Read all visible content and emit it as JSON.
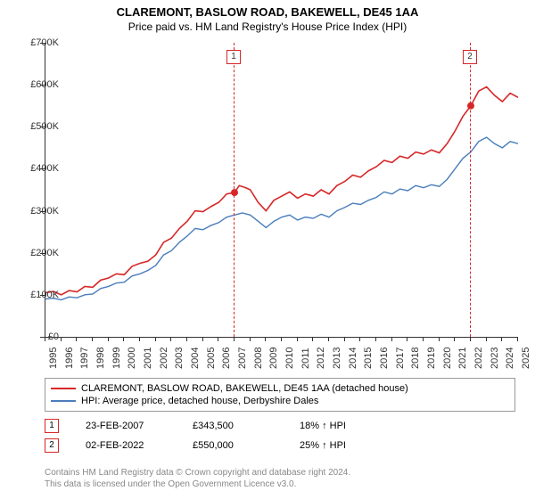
{
  "title": "CLAREMONT, BASLOW ROAD, BAKEWELL, DE45 1AA",
  "subtitle": "Price paid vs. HM Land Registry's House Price Index (HPI)",
  "chart": {
    "type": "line",
    "xlim": [
      1995,
      2025
    ],
    "ylim": [
      0,
      700000
    ],
    "ytick_step": 100000,
    "y_prefix": "£",
    "y_suffix": "K",
    "xticks": [
      1995,
      1996,
      1997,
      1998,
      1999,
      2000,
      2001,
      2002,
      2003,
      2004,
      2005,
      2006,
      2007,
      2008,
      2009,
      2010,
      2011,
      2012,
      2013,
      2014,
      2015,
      2016,
      2017,
      2018,
      2019,
      2020,
      2021,
      2022,
      2023,
      2024,
      2025
    ],
    "background_color": "#ffffff",
    "axis_color": "#333333",
    "series": [
      {
        "name": "CLAREMONT, BASLOW ROAD, BAKEWELL, DE45 1AA (detached house)",
        "color": "#d62728",
        "width": 1.6,
        "data": [
          [
            1995,
            105000
          ],
          [
            1995.5,
            108000
          ],
          [
            1996,
            100000
          ],
          [
            1996.5,
            110000
          ],
          [
            1997,
            107000
          ],
          [
            1997.5,
            120000
          ],
          [
            1998,
            118000
          ],
          [
            1998.5,
            135000
          ],
          [
            1999,
            140000
          ],
          [
            1999.5,
            150000
          ],
          [
            2000,
            148000
          ],
          [
            2000.5,
            168000
          ],
          [
            2001,
            175000
          ],
          [
            2001.5,
            180000
          ],
          [
            2002,
            195000
          ],
          [
            2002.5,
            225000
          ],
          [
            2003,
            235000
          ],
          [
            2003.5,
            258000
          ],
          [
            2004,
            275000
          ],
          [
            2004.5,
            300000
          ],
          [
            2005,
            298000
          ],
          [
            2005.5,
            310000
          ],
          [
            2006,
            320000
          ],
          [
            2006.5,
            340000
          ],
          [
            2007,
            343500
          ],
          [
            2007.3,
            360000
          ],
          [
            2007.7,
            355000
          ],
          [
            2008,
            350000
          ],
          [
            2008.5,
            320000
          ],
          [
            2009,
            300000
          ],
          [
            2009.5,
            325000
          ],
          [
            2010,
            335000
          ],
          [
            2010.5,
            345000
          ],
          [
            2011,
            330000
          ],
          [
            2011.5,
            340000
          ],
          [
            2012,
            335000
          ],
          [
            2012.5,
            350000
          ],
          [
            2013,
            340000
          ],
          [
            2013.5,
            360000
          ],
          [
            2014,
            370000
          ],
          [
            2014.5,
            385000
          ],
          [
            2015,
            380000
          ],
          [
            2015.5,
            395000
          ],
          [
            2016,
            405000
          ],
          [
            2016.5,
            420000
          ],
          [
            2017,
            415000
          ],
          [
            2017.5,
            430000
          ],
          [
            2018,
            425000
          ],
          [
            2018.5,
            440000
          ],
          [
            2019,
            435000
          ],
          [
            2019.5,
            445000
          ],
          [
            2020,
            438000
          ],
          [
            2020.5,
            460000
          ],
          [
            2021,
            490000
          ],
          [
            2021.5,
            525000
          ],
          [
            2022,
            550000
          ],
          [
            2022.5,
            585000
          ],
          [
            2023,
            595000
          ],
          [
            2023.5,
            575000
          ],
          [
            2024,
            560000
          ],
          [
            2024.5,
            580000
          ],
          [
            2025,
            570000
          ]
        ]
      },
      {
        "name": "HPI: Average price, detached house, Derbyshire Dales",
        "color": "#4a7ebb",
        "width": 1.4,
        "data": [
          [
            1995,
            90000
          ],
          [
            1995.5,
            92000
          ],
          [
            1996,
            88000
          ],
          [
            1996.5,
            95000
          ],
          [
            1997,
            93000
          ],
          [
            1997.5,
            100000
          ],
          [
            1998,
            102000
          ],
          [
            1998.5,
            115000
          ],
          [
            1999,
            120000
          ],
          [
            1999.5,
            128000
          ],
          [
            2000,
            130000
          ],
          [
            2000.5,
            145000
          ],
          [
            2001,
            150000
          ],
          [
            2001.5,
            158000
          ],
          [
            2002,
            170000
          ],
          [
            2002.5,
            195000
          ],
          [
            2003,
            205000
          ],
          [
            2003.5,
            225000
          ],
          [
            2004,
            240000
          ],
          [
            2004.5,
            258000
          ],
          [
            2005,
            255000
          ],
          [
            2005.5,
            265000
          ],
          [
            2006,
            272000
          ],
          [
            2006.5,
            285000
          ],
          [
            2007,
            290000
          ],
          [
            2007.5,
            295000
          ],
          [
            2008,
            290000
          ],
          [
            2008.5,
            275000
          ],
          [
            2009,
            260000
          ],
          [
            2009.5,
            275000
          ],
          [
            2010,
            285000
          ],
          [
            2010.5,
            290000
          ],
          [
            2011,
            278000
          ],
          [
            2011.5,
            285000
          ],
          [
            2012,
            282000
          ],
          [
            2012.5,
            292000
          ],
          [
            2013,
            285000
          ],
          [
            2013.5,
            300000
          ],
          [
            2014,
            308000
          ],
          [
            2014.5,
            318000
          ],
          [
            2015,
            315000
          ],
          [
            2015.5,
            325000
          ],
          [
            2016,
            332000
          ],
          [
            2016.5,
            345000
          ],
          [
            2017,
            340000
          ],
          [
            2017.5,
            352000
          ],
          [
            2018,
            348000
          ],
          [
            2018.5,
            360000
          ],
          [
            2019,
            355000
          ],
          [
            2019.5,
            362000
          ],
          [
            2020,
            358000
          ],
          [
            2020.5,
            375000
          ],
          [
            2021,
            400000
          ],
          [
            2021.5,
            425000
          ],
          [
            2022,
            440000
          ],
          [
            2022.5,
            465000
          ],
          [
            2023,
            475000
          ],
          [
            2023.5,
            460000
          ],
          [
            2024,
            450000
          ],
          [
            2024.5,
            465000
          ],
          [
            2025,
            460000
          ]
        ]
      }
    ],
    "markers": [
      {
        "id": "1",
        "x": 2007,
        "price": 343500,
        "color": "#d62728"
      },
      {
        "id": "2",
        "x": 2022,
        "price": 550000,
        "color": "#d62728"
      }
    ]
  },
  "legend": {
    "rows": [
      {
        "color": "#d62728",
        "label": "CLAREMONT, BASLOW ROAD, BAKEWELL, DE45 1AA (detached house)"
      },
      {
        "color": "#4a7ebb",
        "label": "HPI: Average price, detached house, Derbyshire Dales"
      }
    ]
  },
  "sales": [
    {
      "id": "1",
      "color": "#d62728",
      "date": "23-FEB-2007",
      "price": "£343,500",
      "delta": "18% ↑ HPI"
    },
    {
      "id": "2",
      "color": "#d62728",
      "date": "02-FEB-2022",
      "price": "£550,000",
      "delta": "25% ↑ HPI"
    }
  ],
  "footer": {
    "line1": "Contains HM Land Registry data © Crown copyright and database right 2024.",
    "line2": "This data is licensed under the Open Government Licence v3.0."
  }
}
